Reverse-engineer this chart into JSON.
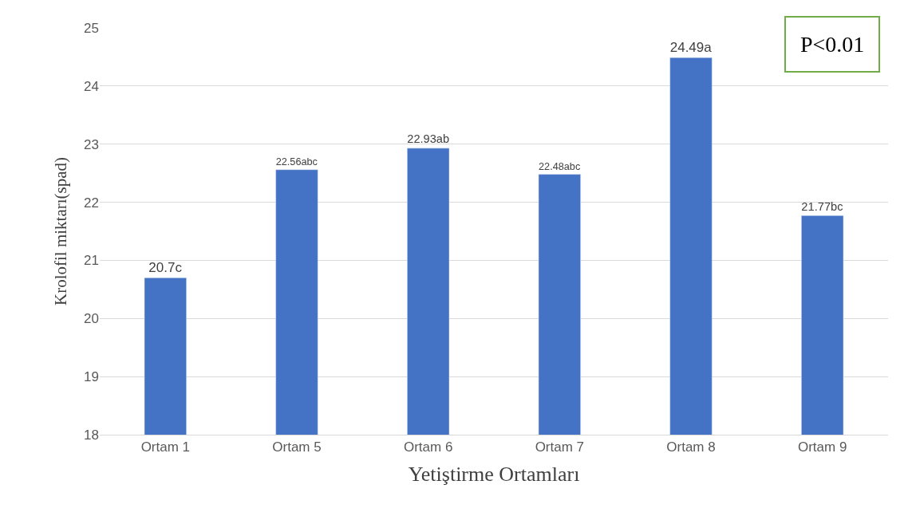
{
  "chart_data": {
    "type": "bar",
    "xlabel": "Yetiştirme Ortamları",
    "ylabel": "Krolofil miktarı(spad)",
    "categories": [
      "Ortam 1",
      "Ortam 5",
      "Ortam 6",
      "Ortam 7",
      "Ortam 8",
      "Ortam 9"
    ],
    "values": [
      20.7,
      22.56,
      22.93,
      22.48,
      24.49,
      21.77
    ],
    "value_labels": [
      "20.7c",
      "22.56abc",
      "22.93ab",
      "22.48abc",
      "24.49a",
      "21.77bc"
    ],
    "color": "#4472c4",
    "ylim": [
      18,
      25
    ],
    "yticks": [
      18,
      19,
      20,
      21,
      22,
      23,
      24,
      25
    ],
    "grid": "y",
    "annotations": [
      "P<0.01"
    ]
  }
}
